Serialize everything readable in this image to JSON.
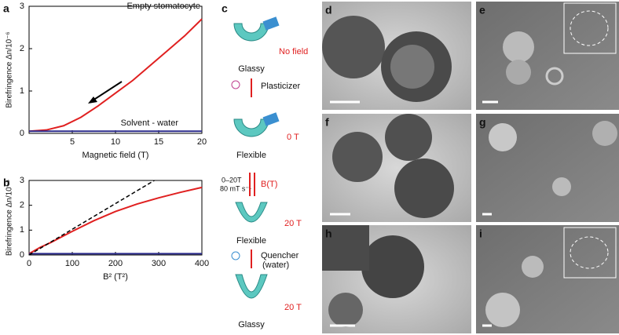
{
  "chart_data": [
    {
      "type": "line",
      "panel": "a",
      "ylabel": "Birefringence Δn/10⁻⁶",
      "xlabel": "Magnetic field (T)",
      "xlim": [
        0,
        20
      ],
      "xticks": [
        5,
        10,
        15,
        20
      ],
      "ylim": [
        0,
        3
      ],
      "yticks": [
        0,
        1,
        2,
        3
      ],
      "series": [
        {
          "name": "Empty stomatocyte",
          "color": "#e02020",
          "x": [
            0,
            2,
            4,
            6,
            8,
            10,
            12,
            14,
            16,
            18,
            20
          ],
          "values": [
            0.05,
            0.08,
            0.18,
            0.38,
            0.65,
            0.95,
            1.25,
            1.6,
            1.95,
            2.3,
            2.7
          ]
        },
        {
          "name": "Solvent - water",
          "color": "#2b2b8c",
          "x": [
            0,
            2,
            4,
            6,
            8,
            10,
            12,
            14,
            16,
            18,
            20
          ],
          "values": [
            0.05,
            0.05,
            0.05,
            0.05,
            0.05,
            0.05,
            0.05,
            0.05,
            0.05,
            0.05,
            0.05
          ]
        }
      ]
    },
    {
      "type": "line",
      "panel": "b",
      "ylabel": "Birefringence Δn/10⁻⁶",
      "xlabel": "B² (T²)",
      "xlim": [
        0,
        400
      ],
      "xticks": [
        0,
        100,
        200,
        300,
        400
      ],
      "ylim": [
        0,
        3
      ],
      "yticks": [
        0,
        1,
        2,
        3
      ],
      "series": [
        {
          "color": "#e02020",
          "x": [
            0,
            25,
            50,
            100,
            150,
            200,
            250,
            300,
            350,
            400
          ],
          "values": [
            0.05,
            0.3,
            0.5,
            0.95,
            1.38,
            1.75,
            2.05,
            2.3,
            2.52,
            2.72
          ]
        },
        {
          "color": "#2b2b8c",
          "x": [
            0,
            25,
            50,
            100,
            150,
            200,
            250,
            300,
            350,
            400
          ],
          "values": [
            0.05,
            0.05,
            0.05,
            0.05,
            0.05,
            0.05,
            0.05,
            0.05,
            0.05,
            0.05
          ]
        },
        {
          "color": "#000000",
          "dashed": true,
          "x": [
            0,
            290
          ],
          "values": [
            0,
            3
          ]
        }
      ]
    }
  ],
  "diagram": {
    "label": "c",
    "no_field": "No field",
    "glassy_1": "Glassy",
    "plasticizer": "Plasticizer",
    "field_0": "0 T",
    "flexible_1": "Flexible",
    "sweep_range": "0–20T",
    "sweep_rate": "80 mT s⁻¹",
    "field_arrow": "B(T)",
    "field_20a": "20 T",
    "flexible_2": "Flexible",
    "quencher": "Quencher",
    "quencher_note": "(water)",
    "field_20b": "20 T",
    "glassy_2": "Glassy"
  },
  "images": [
    {
      "label": "d"
    },
    {
      "label": "e"
    },
    {
      "label": "f"
    },
    {
      "label": "g"
    },
    {
      "label": "h"
    },
    {
      "label": "i"
    }
  ]
}
